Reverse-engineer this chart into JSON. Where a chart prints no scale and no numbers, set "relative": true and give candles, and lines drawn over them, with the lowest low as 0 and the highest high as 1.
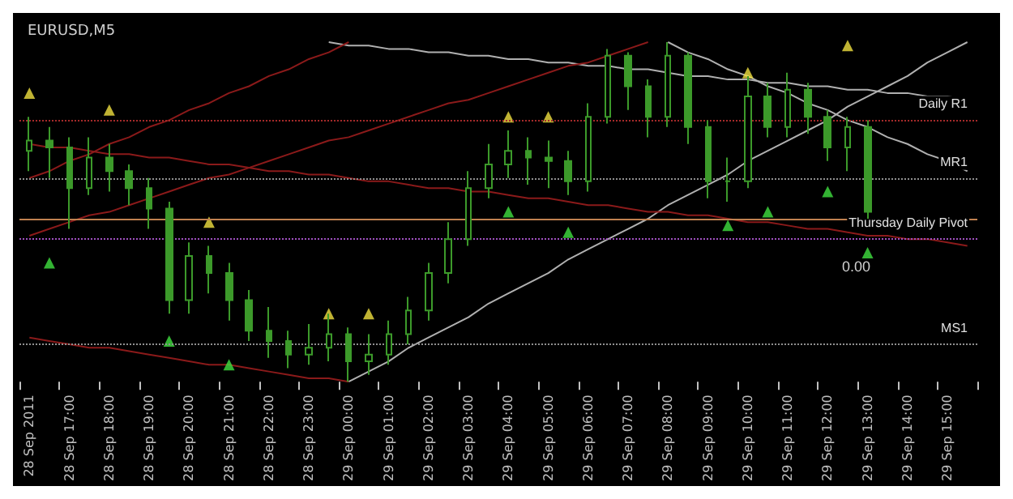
{
  "chart_data": {
    "type": "candlestick",
    "title": "EURUSD,M5",
    "relative": true,
    "color": "#3c9a2a",
    "categories": [
      "28 Sep 2011",
      null,
      "28 Sep 17:00",
      null,
      "28 Sep 18:00",
      null,
      "28 Sep 19:00",
      null,
      "28 Sep 20:00",
      null,
      "28 Sep 21:00",
      null,
      "28 Sep 22:00",
      null,
      "28 Sep 23:00",
      null,
      "29 Sep 00:00",
      null,
      "29 Sep 01:00",
      null,
      "29 Sep 02:00",
      null,
      "29 Sep 03:00",
      null,
      "29 Sep 04:00",
      null,
      "29 Sep 05:00",
      null,
      "29 Sep 06:00",
      null,
      "29 Sep 07:00",
      null,
      "29 Sep 08:00",
      null,
      "29 Sep 09:00",
      null,
      "29 Sep 10:00",
      null,
      "29 Sep 11:00",
      null,
      "29 Sep 12:00",
      null,
      "29 Sep 13:00",
      null,
      "29 Sep 14:00",
      null,
      "29 Sep 15:00",
      null
    ],
    "ohlc": [
      [
        0.68,
        0.78,
        0.62,
        0.71
      ],
      [
        0.71,
        0.75,
        0.6,
        0.69
      ],
      [
        0.69,
        0.72,
        0.45,
        0.57
      ],
      [
        0.57,
        0.72,
        0.55,
        0.66
      ],
      [
        0.66,
        0.7,
        0.56,
        0.62
      ],
      [
        0.62,
        0.64,
        0.52,
        0.57
      ],
      [
        0.57,
        0.6,
        0.45,
        0.51
      ],
      [
        0.51,
        0.53,
        0.2,
        0.24
      ],
      [
        0.24,
        0.41,
        0.2,
        0.37
      ],
      [
        0.37,
        0.4,
        0.26,
        0.32
      ],
      [
        0.32,
        0.35,
        0.18,
        0.24
      ],
      [
        0.24,
        0.27,
        0.12,
        0.15
      ],
      [
        0.15,
        0.22,
        0.07,
        0.12
      ],
      [
        0.12,
        0.15,
        0.04,
        0.08
      ],
      [
        0.08,
        0.17,
        0.05,
        0.1
      ],
      [
        0.1,
        0.2,
        0.06,
        0.14
      ],
      [
        0.14,
        0.16,
        0,
        0.06
      ],
      [
        0.06,
        0.14,
        0.02,
        0.08
      ],
      [
        0.08,
        0.18,
        0.05,
        0.14
      ],
      [
        0.14,
        0.25,
        0.11,
        0.21
      ],
      [
        0.21,
        0.35,
        0.18,
        0.32
      ],
      [
        0.32,
        0.47,
        0.29,
        0.42
      ],
      [
        0.42,
        0.62,
        0.4,
        0.57
      ],
      [
        0.57,
        0.7,
        0.54,
        0.64
      ],
      [
        0.64,
        0.74,
        0.6,
        0.68
      ],
      [
        0.68,
        0.72,
        0.58,
        0.66
      ],
      [
        0.66,
        0.71,
        0.57,
        0.65
      ],
      [
        0.65,
        0.68,
        0.55,
        0.59
      ],
      [
        0.59,
        0.82,
        0.56,
        0.78
      ],
      [
        0.78,
        0.98,
        0.76,
        0.96
      ],
      [
        0.96,
        0.97,
        0.8,
        0.87
      ],
      [
        0.87,
        0.89,
        0.72,
        0.78
      ],
      [
        0.78,
        1,
        0.75,
        0.96
      ],
      [
        0.96,
        0.97,
        0.7,
        0.75
      ],
      [
        0.75,
        0.77,
        0.54,
        0.59
      ],
      [
        0.59,
        0.66,
        0.53,
        0.59
      ],
      [
        0.59,
        0.9,
        0.57,
        0.84
      ],
      [
        0.84,
        0.88,
        0.72,
        0.75
      ],
      [
        0.75,
        0.91,
        0.72,
        0.86
      ],
      [
        0.86,
        0.88,
        0.73,
        0.78
      ],
      [
        0.78,
        0.8,
        0.65,
        0.69
      ],
      [
        0.69,
        0.78,
        0.62,
        0.75
      ],
      [
        0.75,
        0.77,
        0.48,
        0.5
      ],
      null,
      null,
      null,
      null,
      null
    ],
    "series": [
      {
        "type": "line",
        "color": "#b0b0b0",
        "values": [
          null,
          null,
          null,
          null,
          null,
          null,
          null,
          null,
          null,
          null,
          null,
          null,
          null,
          null,
          null,
          1.0,
          0.99,
          0.99,
          0.98,
          0.98,
          0.97,
          0.97,
          0.96,
          0.96,
          0.95,
          0.95,
          0.94,
          0.94,
          0.93,
          0.93,
          0.92,
          0.92,
          0.91,
          0.9,
          0.9,
          0.89,
          0.89,
          0.88,
          0.88,
          0.87,
          0.87,
          0.86,
          0.86,
          0.85,
          0.85,
          0.84,
          0.84,
          0.83
        ]
      },
      {
        "type": "line",
        "color": "#b0b0b0",
        "values": [
          null,
          null,
          null,
          null,
          null,
          null,
          null,
          null,
          null,
          null,
          null,
          null,
          null,
          null,
          null,
          null,
          null,
          null,
          null,
          null,
          null,
          null,
          null,
          null,
          null,
          null,
          null,
          null,
          null,
          null,
          null,
          null,
          1.0,
          0.97,
          0.95,
          0.92,
          0.9,
          0.87,
          0.85,
          0.82,
          0.8,
          0.77,
          0.75,
          0.72,
          0.7,
          0.67,
          0.65,
          0.62
        ]
      },
      {
        "type": "line",
        "color": "#b0b0b0",
        "values": [
          null,
          null,
          null,
          null,
          null,
          null,
          null,
          null,
          null,
          null,
          null,
          null,
          null,
          null,
          null,
          null,
          0,
          0.03,
          0.06,
          0.1,
          0.13,
          0.16,
          0.19,
          0.23,
          0.26,
          0.29,
          0.32,
          0.36,
          0.39,
          0.42,
          0.45,
          0.48,
          0.52,
          0.55,
          0.58,
          0.61,
          0.65,
          0.68,
          0.71,
          0.74,
          0.77,
          0.81,
          0.84,
          0.87,
          0.9,
          0.94,
          0.97,
          1.0
        ]
      },
      {
        "type": "line",
        "color": "#8b1a1a",
        "values": [
          0.7,
          0.69,
          0.69,
          0.68,
          0.67,
          0.67,
          0.66,
          0.66,
          0.65,
          0.64,
          0.64,
          0.63,
          0.62,
          0.62,
          0.61,
          0.61,
          0.6,
          0.59,
          0.59,
          0.58,
          0.57,
          0.57,
          0.56,
          0.56,
          0.55,
          0.54,
          0.54,
          0.53,
          0.52,
          0.52,
          0.51,
          0.5,
          0.5,
          0.49,
          0.49,
          0.48,
          0.47,
          0.47,
          0.46,
          0.45,
          0.45,
          0.44,
          0.43,
          0.43,
          0.42,
          0.42,
          0.41,
          0.4
        ]
      },
      {
        "type": "line",
        "color": "#8b1a1a",
        "values": [
          0.13,
          0.12,
          0.11,
          0.1,
          0.1,
          0.09,
          0.08,
          0.07,
          0.06,
          0.05,
          0.05,
          0.04,
          0.03,
          0.02,
          0.01,
          0.01,
          0,
          null,
          null,
          null,
          null,
          null,
          null,
          null,
          null,
          null,
          null,
          null,
          null,
          null,
          null,
          null,
          null,
          null,
          null,
          null,
          null,
          null,
          null,
          null,
          null,
          null,
          null,
          null,
          null,
          null,
          null,
          null
        ]
      },
      {
        "type": "line",
        "color": "#8b1a1a",
        "values": [
          0.6,
          0.62,
          0.65,
          0.67,
          0.7,
          0.72,
          0.75,
          0.77,
          0.8,
          0.82,
          0.85,
          0.87,
          0.9,
          0.92,
          0.95,
          0.97,
          1.0,
          null,
          null,
          null,
          null,
          null,
          null,
          null,
          null,
          null,
          null,
          null,
          null,
          null,
          null,
          null,
          null,
          null,
          null,
          null,
          null,
          null,
          null,
          null,
          null,
          null,
          null,
          null,
          null,
          null,
          null,
          null
        ]
      },
      {
        "type": "line",
        "color": "#8b1a1a",
        "values": [
          0.43,
          0.45,
          0.47,
          0.49,
          0.5,
          0.52,
          0.54,
          0.56,
          0.58,
          0.6,
          0.61,
          0.63,
          0.65,
          0.67,
          0.69,
          0.71,
          0.72,
          0.74,
          0.76,
          0.78,
          0.8,
          0.82,
          0.83,
          0.85,
          0.87,
          0.89,
          0.91,
          0.93,
          0.94,
          0.96,
          0.98,
          1.0,
          null,
          null,
          null,
          null,
          null,
          null,
          null,
          null,
          null,
          null,
          null,
          null,
          null,
          null,
          null,
          null
        ]
      },
      {
        "type": "scatter",
        "marker": "triangle",
        "color": "#f0e040",
        "values": [
          0.85,
          null,
          null,
          null,
          0.8,
          null,
          null,
          null,
          null,
          0.47,
          null,
          null,
          null,
          null,
          null,
          0.2,
          null,
          0.2,
          null,
          null,
          null,
          null,
          null,
          null,
          0.78,
          null,
          0.78,
          null,
          null,
          null,
          null,
          null,
          null,
          null,
          null,
          null,
          0.91,
          null,
          null,
          null,
          null,
          0.99,
          null,
          null,
          null,
          null,
          null,
          null
        ]
      },
      {
        "type": "scatter",
        "marker": "triangle",
        "color": "#40e040",
        "values": [
          null,
          0.35,
          null,
          null,
          null,
          null,
          null,
          0.12,
          null,
          null,
          0.05,
          null,
          null,
          null,
          null,
          null,
          null,
          null,
          null,
          null,
          null,
          null,
          null,
          null,
          0.5,
          null,
          null,
          0.44,
          null,
          null,
          null,
          null,
          null,
          null,
          null,
          0.46,
          null,
          0.5,
          null,
          null,
          0.56,
          null,
          0.38,
          null,
          null,
          null,
          null,
          null
        ]
      }
    ],
    "ref_lines": [
      {
        "axis": "y",
        "value": 0.77,
        "label": "Daily R1",
        "color": "#a52a2a",
        "line_style": "dotted"
      },
      {
        "axis": "y",
        "value": 0.6,
        "label": "MR1",
        "color": "#909090",
        "line_style": "dotted"
      },
      {
        "axis": "y",
        "value": 0.48,
        "label": null,
        "color": "#c08050",
        "line_style": "solid"
      },
      {
        "axis": "y",
        "value": 0.42,
        "label": "Thursday Daily Pivot",
        "color": "#a050c0",
        "line_style": "dotted"
      },
      {
        "axis": "y",
        "value": 0.11,
        "label": "MS1",
        "color": "#909090",
        "line_style": "dotted"
      }
    ],
    "annotations": [
      "0.00"
    ],
    "grid": false
  }
}
